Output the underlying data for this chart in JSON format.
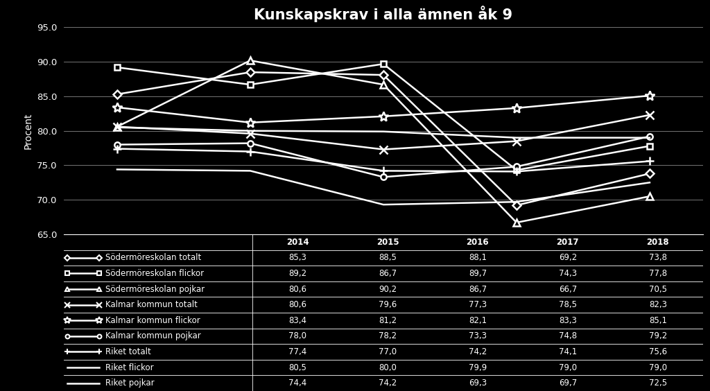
{
  "title": "Kunskapskrav i alla ämnen åk 9",
  "ylabel": "Procent",
  "years": [
    2014,
    2015,
    2016,
    2017,
    2018
  ],
  "ylim": [
    65.0,
    95.0
  ],
  "yticks": [
    65.0,
    70.0,
    75.0,
    80.0,
    85.0,
    90.0,
    95.0
  ],
  "series": [
    {
      "label": "Södermöreskolan totalt",
      "values": [
        85.3,
        88.5,
        88.1,
        69.2,
        73.8
      ],
      "marker": "D",
      "markersize": 6,
      "linewidth": 1.8,
      "color": "#ffffff"
    },
    {
      "label": "Södermöreskolan flickor",
      "values": [
        89.2,
        86.7,
        89.7,
        74.3,
        77.8
      ],
      "marker": "s",
      "markersize": 6,
      "linewidth": 1.8,
      "color": "#ffffff"
    },
    {
      "label": "Södermöreskolan pojkar",
      "values": [
        80.6,
        90.2,
        86.7,
        66.7,
        70.5
      ],
      "marker": "^",
      "markersize": 7,
      "linewidth": 1.8,
      "color": "#ffffff"
    },
    {
      "label": "Kalmar kommun totalt",
      "values": [
        80.6,
        79.6,
        77.3,
        78.5,
        82.3
      ],
      "marker": "x",
      "markersize": 8,
      "linewidth": 1.8,
      "color": "#ffffff"
    },
    {
      "label": "Kalmar kommun flickor",
      "values": [
        83.4,
        81.2,
        82.1,
        83.3,
        85.1
      ],
      "marker": "*",
      "markersize": 10,
      "linewidth": 1.8,
      "color": "#ffffff"
    },
    {
      "label": "Kalmar kommun pojkar",
      "values": [
        78.0,
        78.2,
        73.3,
        74.8,
        79.2
      ],
      "marker": "o",
      "markersize": 6,
      "linewidth": 1.8,
      "color": "#ffffff"
    },
    {
      "label": "Riket totalt",
      "values": [
        77.4,
        77.0,
        74.2,
        74.1,
        75.6
      ],
      "marker": "+",
      "markersize": 8,
      "linewidth": 1.8,
      "color": "#ffffff"
    },
    {
      "label": "Riket flickor",
      "values": [
        80.5,
        80.0,
        79.9,
        79.0,
        79.0
      ],
      "marker": "None",
      "markersize": 0,
      "linewidth": 1.8,
      "color": "#ffffff"
    },
    {
      "label": "Riket pojkar",
      "values": [
        74.4,
        74.2,
        69.3,
        69.7,
        72.5
      ],
      "marker": "None",
      "markersize": 0,
      "linewidth": 1.8,
      "color": "#ffffff"
    }
  ],
  "background_color": "#000000",
  "text_color": "#ffffff",
  "grid_color": "#888888",
  "table_header": [
    "",
    "2014",
    "2015",
    "2016",
    "2017",
    "2018"
  ],
  "table_rows": [
    [
      "Södermöreskolan totalt",
      "85,3",
      "88,5",
      "88,1",
      "69,2",
      "73,8"
    ],
    [
      "Södermöreskolan flickor",
      "89,2",
      "86,7",
      "89,7",
      "74,3",
      "77,8"
    ],
    [
      "Södermöreskolan pojkar",
      "80,6",
      "90,2",
      "86,7",
      "66,7",
      "70,5"
    ],
    [
      "Kalmar kommun totalt",
      "80,6",
      "79,6",
      "77,3",
      "78,5",
      "82,3"
    ],
    [
      "Kalmar kommun flickor",
      "83,4",
      "81,2",
      "82,1",
      "83,3",
      "85,1"
    ],
    [
      "Kalmar kommun pojkar",
      "78,0",
      "78,2",
      "73,3",
      "74,8",
      "79,2"
    ],
    [
      "Riket totalt",
      "77,4",
      "77,0",
      "74,2",
      "74,1",
      "75,6"
    ],
    [
      "Riket flickor",
      "80,5",
      "80,0",
      "79,9",
      "79,0",
      "79,0"
    ],
    [
      "Riket pojkar",
      "74,4",
      "74,2",
      "69,3",
      "69,7",
      "72,5"
    ]
  ]
}
